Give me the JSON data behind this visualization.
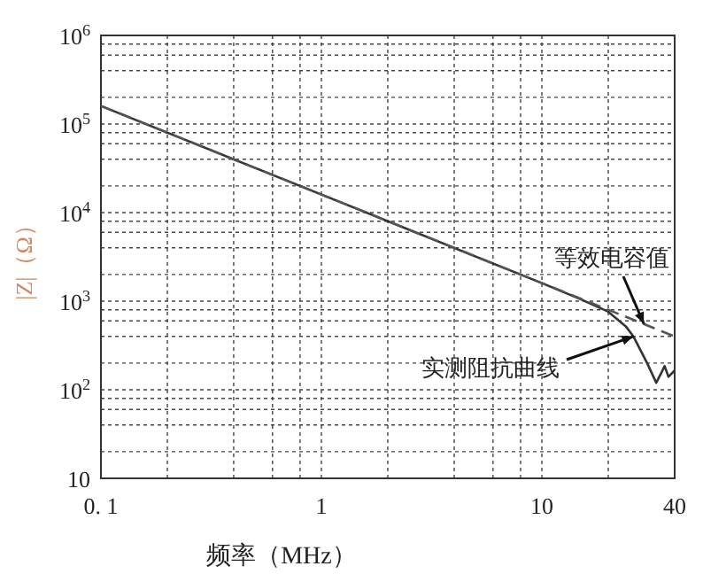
{
  "chart_data": {
    "type": "line",
    "xlabel": "频率（MHz）",
    "ylabel": "|Z|（Ω）",
    "log": "xy",
    "grid": true,
    "xlim": [
      0.1,
      40
    ],
    "ylim": [
      10,
      1000000
    ],
    "xticks": [
      {
        "value": 0.1,
        "label": "0. 1"
      },
      {
        "value": 0.2,
        "label": null
      },
      {
        "value": 0.4,
        "label": null
      },
      {
        "value": 0.6,
        "label": null
      },
      {
        "value": 0.8,
        "label": null
      },
      1,
      {
        "value": 2,
        "label": null
      },
      {
        "value": 4,
        "label": null
      },
      {
        "value": 6,
        "label": null
      },
      {
        "value": 8,
        "label": null
      },
      10,
      {
        "value": 20,
        "label": null
      },
      40
    ],
    "yticks": [
      10,
      {
        "value": 20,
        "label": null
      },
      {
        "value": 40,
        "label": null
      },
      {
        "value": 60,
        "label": null
      },
      {
        "value": 80,
        "label": null
      },
      {
        "value": 100,
        "label": "10$^{2}$"
      },
      {
        "value": 200,
        "label": null
      },
      {
        "value": 400,
        "label": null
      },
      {
        "value": 600,
        "label": null
      },
      {
        "value": 800,
        "label": null
      },
      {
        "value": 1000,
        "label": "10$^{3}$"
      },
      {
        "value": 2000,
        "label": null
      },
      {
        "value": 4000,
        "label": null
      },
      {
        "value": 6000,
        "label": null
      },
      {
        "value": 8000,
        "label": null
      },
      {
        "value": 10000,
        "label": "10$^{4}$"
      },
      {
        "value": 20000,
        "label": null
      },
      {
        "value": 40000,
        "label": null
      },
      {
        "value": 60000,
        "label": null
      },
      {
        "value": 80000,
        "label": null
      },
      {
        "value": 100000,
        "label": "10$^{5}$"
      },
      {
        "value": 200000,
        "label": null
      },
      {
        "value": 400000,
        "label": null
      },
      {
        "value": 600000,
        "label": null
      },
      {
        "value": 800000,
        "label": null
      },
      {
        "value": 1000000,
        "label": "10$^{6}$"
      }
    ],
    "series": [
      {
        "color": "#555555",
        "line_style": "dashed",
        "x": [
          0.1,
          1,
          10,
          40
        ],
        "values": [
          160000,
          16000,
          1600,
          400
        ]
      },
      {
        "color": "#333333",
        "line_style": "solid",
        "x": [
          0.1,
          1,
          10,
          15,
          20,
          24,
          26,
          28,
          30,
          33,
          35,
          36,
          37.5,
          40
        ],
        "values": [
          160000,
          16000,
          1600,
          1050,
          760,
          520,
          400,
          280,
          200,
          120,
          160,
          185,
          140,
          165
        ]
      }
    ],
    "annotations": [
      {
        "text": "等效电容值",
        "x": 29,
        "y": 555
      },
      {
        "text": "实测阻抗曲线",
        "x": 26,
        "y": 400
      }
    ]
  }
}
